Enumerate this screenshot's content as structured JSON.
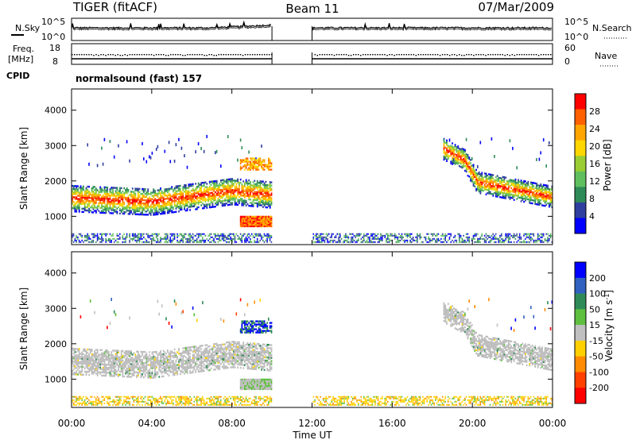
{
  "header": {
    "title": "TIGER (fitACF)",
    "beam": "Beam 11",
    "date": "07/Mar/2009"
  },
  "panels": {
    "nsky_label": "N.Sky",
    "nsearch_label": "N.Search",
    "noise_ticks": [
      "10^5",
      "10^0"
    ],
    "freq_label": "Freq.",
    "freq_unit": "[MHz]",
    "freq_ticks": [
      "18",
      "8"
    ],
    "nave_label": "Nave",
    "nave_ticks": [
      "60",
      "0"
    ],
    "cpid_label": "CPID",
    "cpid_value": "normalsound (fast) 157"
  },
  "colors": {
    "power": [
      "#0000ff",
      "#2f3f9f",
      "#2e8b57",
      "#5fbf5f",
      "#9acd32",
      "#ffd700",
      "#ffa500",
      "#ff6000",
      "#ff0000"
    ],
    "velocity": [
      "#0000ff",
      "#3060c0",
      "#2e8b57",
      "#5fbf3f",
      "#c0c0c0",
      "#ffd000",
      "#ff8c00",
      "#ff4000",
      "#ff0000"
    ],
    "ground": "#bdbdbd"
  },
  "chart_data": [
    {
      "type": "heatmap",
      "title": "",
      "xlabel": "Time UT",
      "ylabel": "Slant Range [km]",
      "x_ticks": [
        "00:00",
        "04:00",
        "08:00",
        "12:00",
        "16:00",
        "20:00",
        "00:00"
      ],
      "x_tick_hours": [
        0,
        4,
        8,
        12,
        16,
        20,
        24
      ],
      "xlim_hours": [
        0,
        24
      ],
      "ylim": [
        200,
        4600
      ],
      "y_ticks": [
        1000,
        2000,
        3000,
        4000
      ],
      "data_gap_hours": [
        10,
        12
      ],
      "colorbar": {
        "label": "Power [dB]",
        "ticks": [
          4,
          8,
          12,
          16,
          20,
          24,
          28
        ],
        "range": [
          0,
          32
        ]
      },
      "features": [
        {
          "name": "F-region band",
          "t": [
            0,
            2,
            4,
            6,
            8,
            10
          ],
          "range_km": [
            1500,
            1450,
            1400,
            1500,
            1700,
            1600
          ]
        },
        {
          "name": "F-region band (late)",
          "t": [
            18.5,
            19.5,
            20,
            21,
            22,
            24
          ],
          "range_km": [
            2900,
            2500,
            1900,
            1700,
            1600,
            1500
          ]
        }
      ]
    },
    {
      "type": "heatmap",
      "title": "",
      "xlabel": "Time UT",
      "ylabel": "Slant Range [km]",
      "x_ticks": [
        "00:00",
        "04:00",
        "08:00",
        "12:00",
        "16:00",
        "20:00",
        "00:00"
      ],
      "x_tick_hours": [
        0,
        4,
        8,
        12,
        16,
        20,
        24
      ],
      "xlim_hours": [
        0,
        24
      ],
      "ylim": [
        200,
        4600
      ],
      "y_ticks": [
        1000,
        2000,
        3000,
        4000
      ],
      "data_gap_hours": [
        10,
        12
      ],
      "colorbar": {
        "label": "Velocity [m s^-1]",
        "ticks": [
          200,
          100,
          50,
          15,
          -15,
          -50,
          -100,
          -200
        ]
      }
    }
  ]
}
